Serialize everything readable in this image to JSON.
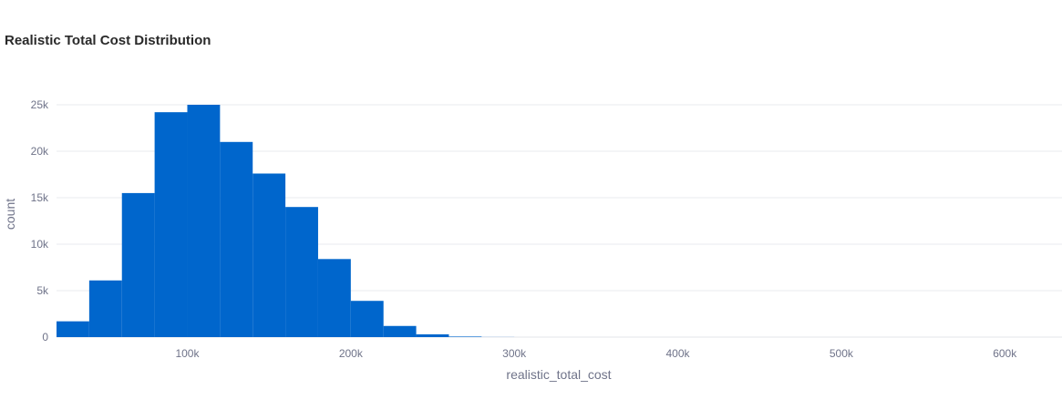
{
  "chart_data": {
    "type": "bar",
    "title": "Realistic Total Cost Distribution",
    "xlabel": "realistic_total_cost",
    "ylabel": "count",
    "xlim": [
      20000,
      635000
    ],
    "ylim": [
      0,
      25000
    ],
    "x_ticks": [
      100000,
      200000,
      300000,
      400000,
      500000,
      600000
    ],
    "x_tick_labels": [
      "100k",
      "200k",
      "300k",
      "400k",
      "500k",
      "600k"
    ],
    "y_ticks": [
      0,
      5000,
      10000,
      15000,
      20000,
      25000
    ],
    "y_tick_labels": [
      "0",
      "5k",
      "10k",
      "15k",
      "20k",
      "25k"
    ],
    "grid": true,
    "bar_color": "#0066cc",
    "bins": [
      {
        "start": 20000,
        "end": 40000,
        "count": 1700
      },
      {
        "start": 40000,
        "end": 60000,
        "count": 6100
      },
      {
        "start": 60000,
        "end": 80000,
        "count": 15500
      },
      {
        "start": 80000,
        "end": 100000,
        "count": 24200
      },
      {
        "start": 100000,
        "end": 120000,
        "count": 25000
      },
      {
        "start": 120000,
        "end": 140000,
        "count": 21000
      },
      {
        "start": 140000,
        "end": 160000,
        "count": 17600
      },
      {
        "start": 160000,
        "end": 180000,
        "count": 14000
      },
      {
        "start": 180000,
        "end": 200000,
        "count": 8400
      },
      {
        "start": 200000,
        "end": 220000,
        "count": 3900
      },
      {
        "start": 220000,
        "end": 240000,
        "count": 1200
      },
      {
        "start": 240000,
        "end": 260000,
        "count": 300
      },
      {
        "start": 260000,
        "end": 280000,
        "count": 60
      },
      {
        "start": 280000,
        "end": 300000,
        "count": 10
      }
    ]
  }
}
